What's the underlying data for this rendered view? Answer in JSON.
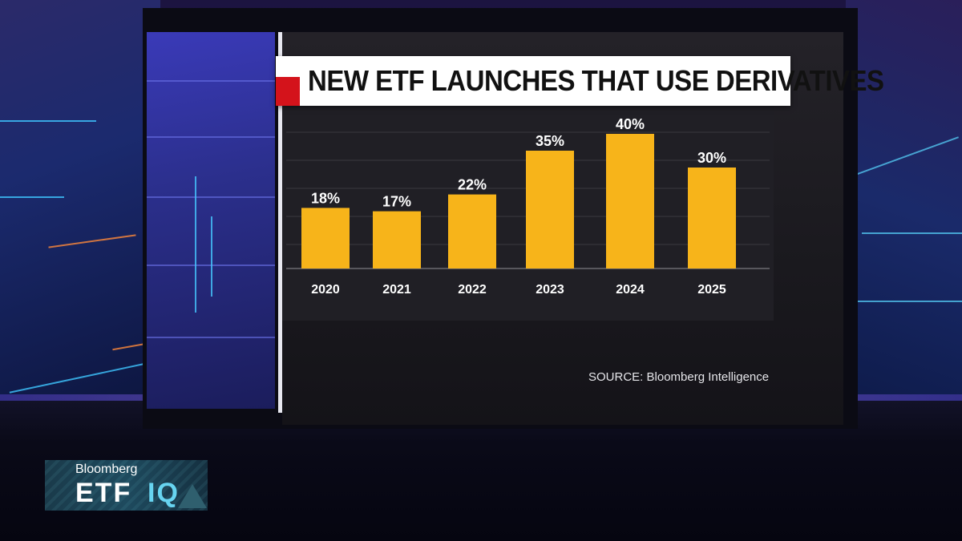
{
  "chart_data": {
    "type": "bar",
    "title": "NEW ETF LAUNCHES THAT USE DERIVATIVES",
    "categories": [
      "2020",
      "2021",
      "2022",
      "2023",
      "2024",
      "2025"
    ],
    "values": [
      18,
      17,
      22,
      35,
      40,
      30
    ],
    "value_labels": [
      "18%",
      "17%",
      "22%",
      "35%",
      "40%",
      "30%"
    ],
    "ylim": [
      0,
      45
    ],
    "xlabel": "",
    "ylabel": "",
    "grid": true,
    "bar_color": "#f7b41a",
    "source": "SOURCE: Bloomberg Intelligence"
  },
  "logo": {
    "brand": "Bloomberg",
    "show_part1": "ETF",
    "show_part2": "IQ"
  },
  "colors": {
    "accent_red": "#d4131b",
    "logo_accent": "#67d4f0"
  }
}
